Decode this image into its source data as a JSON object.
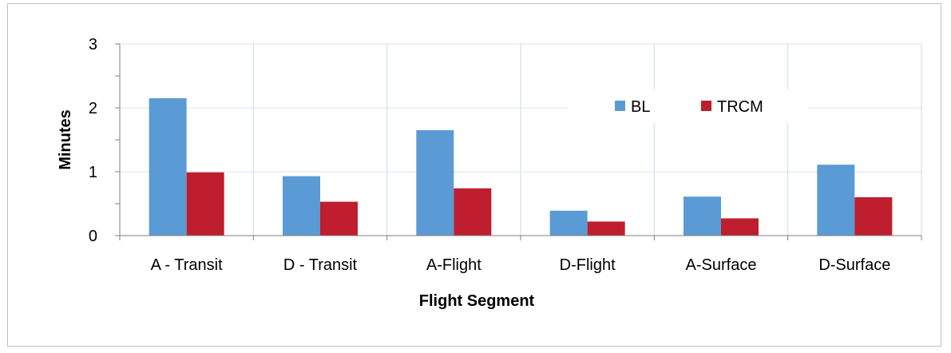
{
  "chart_data": {
    "type": "bar",
    "title": "",
    "xlabel": "Flight Segment",
    "ylabel": "Minutes",
    "categories": [
      "A - Transit",
      "D - Transit",
      "A-Flight",
      "D-Flight",
      "A-Surface",
      "D-Surface"
    ],
    "series": [
      {
        "name": "BL",
        "color": "#5b9bd5",
        "values": [
          2.15,
          0.93,
          1.65,
          0.39,
          0.61,
          1.11
        ]
      },
      {
        "name": "TRCM",
        "color": "#be1e2d",
        "values": [
          0.99,
          0.53,
          0.74,
          0.22,
          0.27,
          0.6
        ]
      }
    ],
    "ylim": [
      0,
      3
    ],
    "yticks": [
      "0",
      "1",
      "2",
      "3"
    ],
    "grid": true,
    "legend_position": "upper-right-inside"
  }
}
